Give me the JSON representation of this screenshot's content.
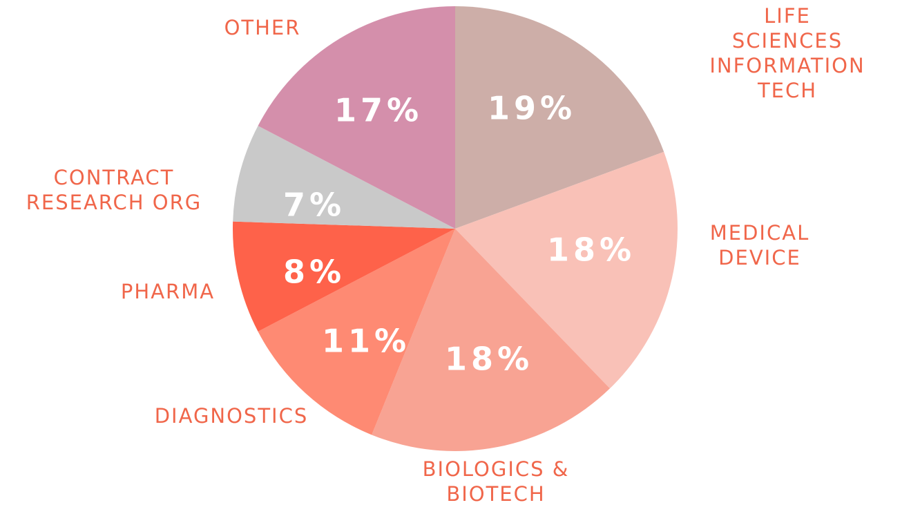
{
  "chart_data": {
    "type": "pie",
    "categories": [
      "LIFE SCIENCES\nINFORMATION TECH",
      "MEDICAL\nDEVICE",
      "BIOLOGICS &\nBIOTECH",
      "DIAGNOSTICS",
      "PHARMA",
      "CONTRACT\nRESEARCH ORG",
      "OTHER"
    ],
    "values": [
      19,
      18,
      18,
      11,
      8,
      7,
      17
    ],
    "value_labels": [
      "19%",
      "18%",
      "18%",
      "11%",
      "8%",
      "7%",
      "17%"
    ],
    "colors": [
      "#cdaea8",
      "#f9c1b7",
      "#f8a393",
      "#fe8a73",
      "#fe624a",
      "#c9c9c9",
      "#d48fab"
    ]
  }
}
